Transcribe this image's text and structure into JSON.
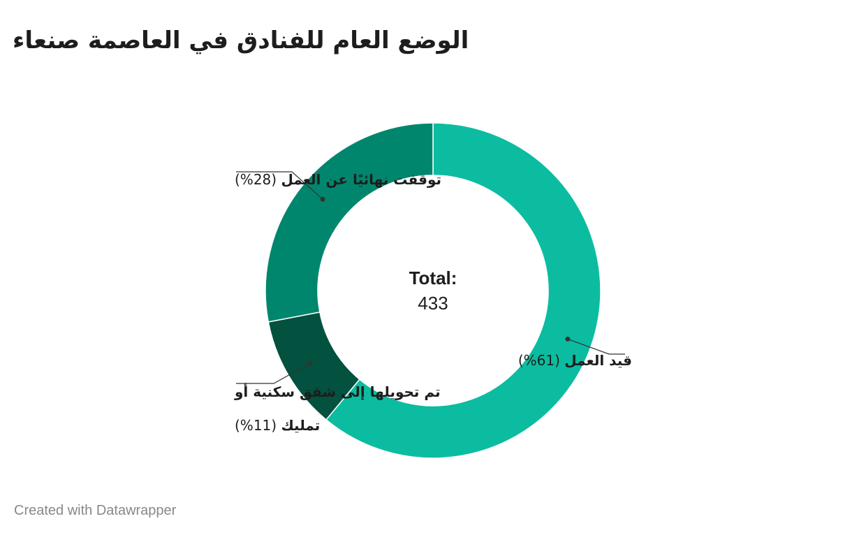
{
  "chart_data": {
    "type": "pie",
    "title": "الوضع العام للفنادق في العاصمة صنعاء",
    "center_label": {
      "heading": "Total:",
      "value": "433"
    },
    "slices": [
      {
        "label": "قيد العمل",
        "percent_label": "(61%)",
        "percent": 61,
        "color": "#0bbca0"
      },
      {
        "label": "تم تحويلها إلى شقق سكنية أو تمليك",
        "label_lines": [
          "تم تحويلها إلى شقق سكنية أو",
          "تمليك"
        ],
        "percent_label": "(11%)",
        "percent": 11,
        "color": "#03513f"
      },
      {
        "label": "توقفت نهائيًا عن العمل",
        "percent_label": "(28%)",
        "percent": 28,
        "color": "#01866e"
      }
    ]
  },
  "footer": {
    "credit": "Created with Datawrapper"
  }
}
